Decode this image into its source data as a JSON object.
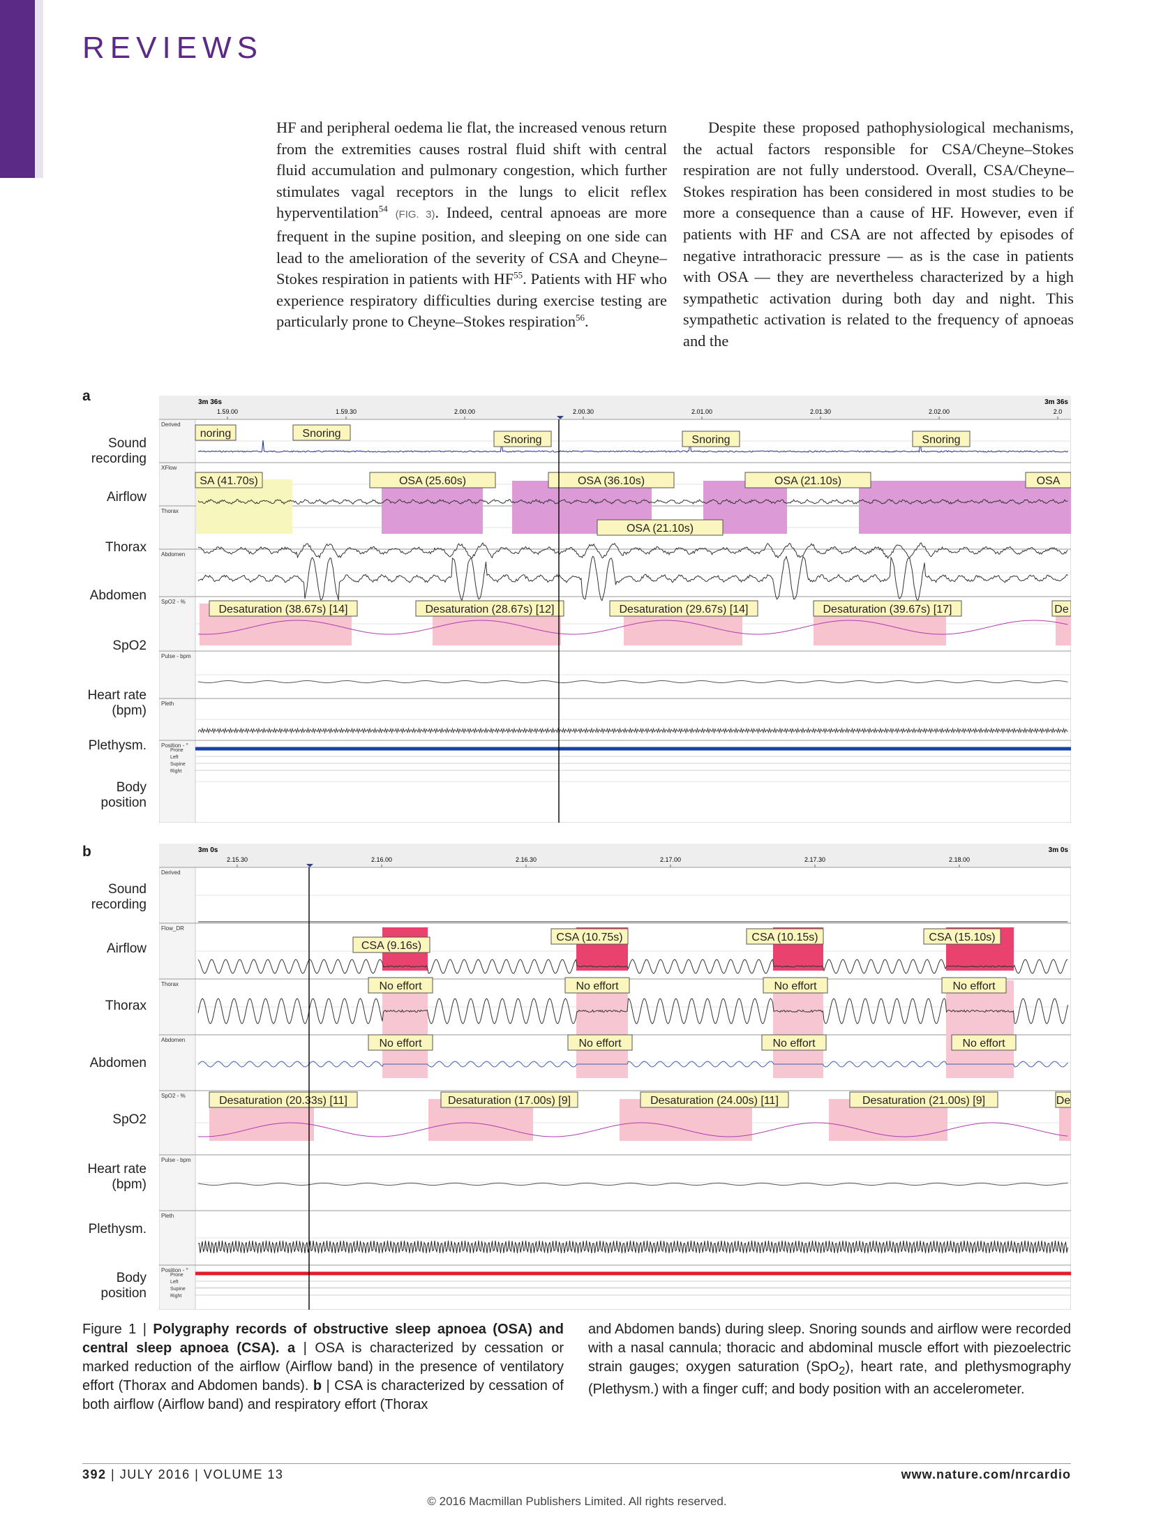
{
  "journal": {
    "section": "REVIEWS",
    "footer_page": "392",
    "footer_issue": "JULY 2016 | VOLUME 13",
    "footer_url": "www.nature.com/nrcardio",
    "copyright": "© 2016 Macmillan Publishers Limited. All rights reserved."
  },
  "body_text": {
    "left_a": "HF and peripheral oedema lie flat, the increased venous return from the extremities causes rostral fluid shift with central fluid accumulation and pulmonary congestion, which further stimulates vagal receptors in the lungs to elicit reflex hyperventilation",
    "left_a_sup": "54",
    "left_a_ref": "(FIG. 3)",
    "left_b": ". Indeed, central apnoeas are more frequent in the supine position, and sleeping on one side can lead to the amelioration of the severity of CSA and Cheyne–Stokes respiration in patients with HF",
    "left_b_sup": "55",
    "left_c": ". Patients with HF who experience respiratory difficulties during exercise testing are particularly prone to Cheyne–Stokes respiration",
    "left_c_sup": "56",
    "left_d": ".",
    "right": "Despite these proposed pathophysiological mechanisms, the actual factors responsible for CSA/Cheyne–Stokes respiration are not fully understood. Overall, CSA/Cheyne–Stokes respiration has been considered in most studies to be more a consequence than a cause of HF. However, even if patients with HF and CSA are not affected by episodes of negative intrathoracic pressure — as is the case in patients with OSA — they are nevertheless characterized by a high sympathetic activation during both day and night. This sympathetic activation is related to the frequency of apnoeas and the"
  },
  "figure": {
    "row_labels": {
      "sound_1": "Sound",
      "sound_2": "recording",
      "airflow": "Airflow",
      "thorax": "Thorax",
      "abdomen": "Abdomen",
      "spo2": "SpO2",
      "hr_1": "Heart rate",
      "hr_2": "(bpm)",
      "pleth": "Plethysm.",
      "body_1": "Body",
      "body_2": "position"
    },
    "position_levels": [
      "Prone",
      "Left",
      "Supine",
      "Right"
    ],
    "panel_a": {
      "letter": "a",
      "window": "3m 36s",
      "times": [
        "1.59.00",
        "1.59.30",
        "2.00.00",
        "2.00.30",
        "2.01.00",
        "2.01.30",
        "2.02.00",
        "2.0"
      ],
      "band_titles": [
        "Derived",
        "XFlow",
        "Thorax",
        "Abdomen",
        "SpO2 - %",
        "Pulse - bpm",
        "Pleth",
        "Position - °"
      ],
      "snoring": [
        "noring",
        "Snoring",
        "Snoring",
        "Snoring",
        "Snoring"
      ],
      "events": [
        "SA (41.70s)",
        "OSA (25.60s)",
        "OSA (36.10s)",
        "OSA (21.10s)",
        "OSA",
        "OSA (21.10s)"
      ],
      "desats": [
        "Desaturation (38.67s) [14]",
        "Desaturation (28.67s) [12]",
        "Desaturation (29.67s) [14]",
        "Desaturation (39.67s) [17]",
        "De"
      ],
      "body_color": "#1a3fa8"
    },
    "panel_b": {
      "letter": "b",
      "window": "3m 0s",
      "times": [
        "2.15.30",
        "2.16.00",
        "2.16.30",
        "2.17.00",
        "2.17.30",
        "2.18.00"
      ],
      "band_titles": [
        "Derived",
        "Flow_DR",
        "Thorax",
        "Abdomen",
        "SpO2 - %",
        "Pulse - bpm",
        "Pleth",
        "Position - °"
      ],
      "events": [
        "CSA (9.16s)",
        "CSA (10.75s)",
        "CSA (10.15s)",
        "CSA (15.10s)"
      ],
      "no_effort": "No effort",
      "desats": [
        "Desaturation (20.33s) [11]",
        "Desaturation (17.00s) [9]",
        "Desaturation (24.00s) [11]",
        "Desaturation (21.00s) [9]",
        "De"
      ],
      "body_color": "#e21c2a"
    },
    "colors": {
      "osa": "#dc9ad6",
      "csa": "#e9426f",
      "csa_light": "#f6c7d3",
      "csa_yellow": "#f4f4b0",
      "desat": "#f6c3cf",
      "label_fill": "#fbf6be",
      "trace": "#333333",
      "abdomen_b": "#3f5fb0",
      "spo2": "#b13ab1"
    }
  },
  "caption": {
    "fig_label": "Figure 1 | ",
    "title": "Polygraphy records of obstructive sleep apnoea (OSA) and central sleep apnoea (CSA).",
    "a_label": " a",
    "a_text": " | OSA is characterized by cessation or marked reduction of the airflow (Airflow band) in the presence of ventilatory effort (Thorax and Abdomen bands). ",
    "b_label": "b",
    "b_text": " | CSA is characterized by cessation of both airflow (Airflow band) and respiratory effort (Thorax",
    "right_1": "and Abdomen bands) during sleep. Snoring sounds and airflow were recorded with a nasal cannula; thoracic and abdominal muscle effort with piezoelectric strain gauges; oxygen saturation (SpO",
    "right_sub": "2",
    "right_2": "), heart rate, and plethysmography (Plethysm.) with a finger cuff; and body position with an accelerometer."
  }
}
